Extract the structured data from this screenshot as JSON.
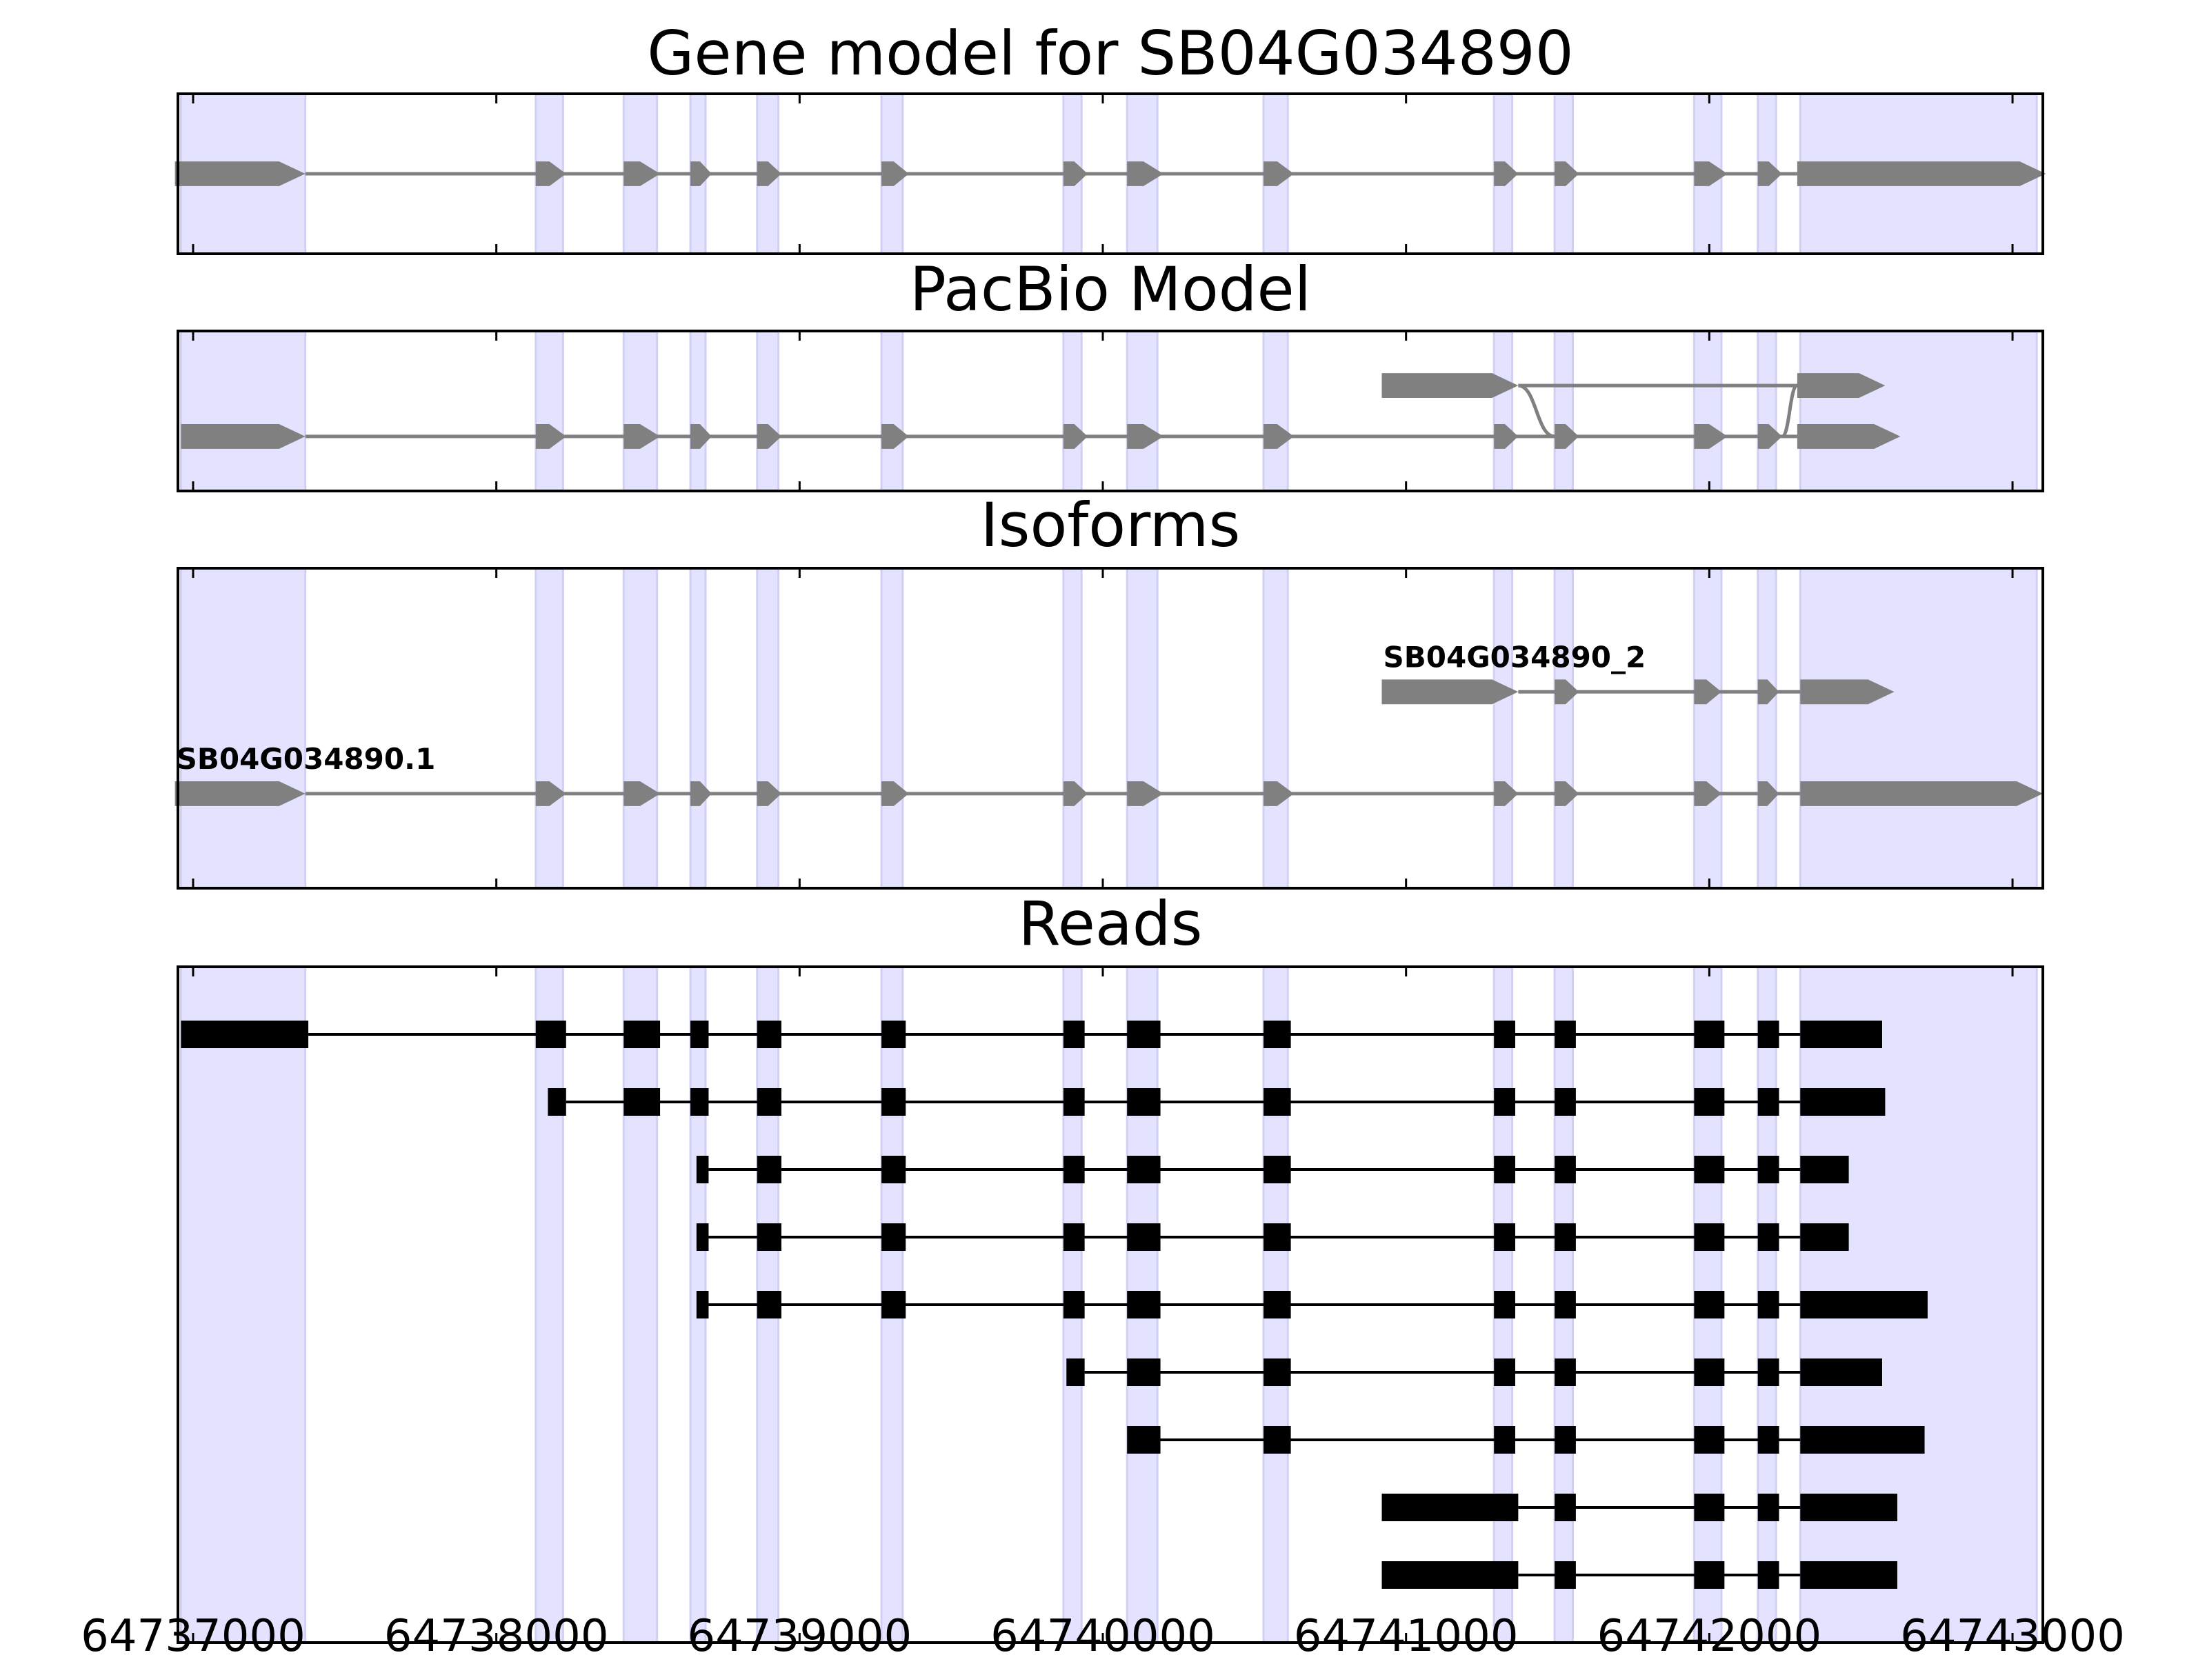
{
  "chart_data": {
    "type": "gene_model_tracks",
    "x_range": [
      64736950,
      64743100
    ],
    "colors": {
      "exon_band": "#E3E3FF",
      "exon_band_edge": "#D0D0F4",
      "model_fill": "#808080",
      "read_fill": "#000000",
      "axes": "#000000",
      "background": "#FFFFFF"
    },
    "xticks": [
      {
        "value": 64737000,
        "label": "64737000"
      },
      {
        "value": 64738000,
        "label": "64738000"
      },
      {
        "value": 64739000,
        "label": "64739000"
      },
      {
        "value": 64740000,
        "label": "64740000"
      },
      {
        "value": 64741000,
        "label": "64741000"
      },
      {
        "value": 64742000,
        "label": "64742000"
      },
      {
        "value": 64743000,
        "label": "64743000"
      }
    ],
    "exon_bands": [
      [
        64736960,
        64737370
      ],
      [
        64738130,
        64738220
      ],
      [
        64738420,
        64738530
      ],
      [
        64738640,
        64738690
      ],
      [
        64738860,
        64738930
      ],
      [
        64739270,
        64739340
      ],
      [
        64739870,
        64739930
      ],
      [
        64740080,
        64740180
      ],
      [
        64740530,
        64740610
      ],
      [
        64741290,
        64741350
      ],
      [
        64741490,
        64741550
      ],
      [
        64741950,
        64742040
      ],
      [
        64742160,
        64742220
      ],
      [
        64742300,
        64743080
      ]
    ],
    "panels": [
      {
        "title": "Gene model for SB04G034890",
        "style": "model",
        "height_units": 2.2,
        "rows": [
          {
            "y": 1.1,
            "exons": [
              [
                64736940,
                64737370
              ],
              [
                64738130,
                64738230
              ],
              [
                64738420,
                64738540
              ],
              [
                64738640,
                64738710
              ],
              [
                64738860,
                64738940
              ],
              [
                64739270,
                64739360
              ],
              [
                64739870,
                64739950
              ],
              [
                64740080,
                64740200
              ],
              [
                64740530,
                64740630
              ],
              [
                64741290,
                64741370
              ],
              [
                64741490,
                64741570
              ],
              [
                64741950,
                64742060
              ],
              [
                64742160,
                64742240
              ],
              [
                64742290,
                64743110
              ]
            ]
          }
        ]
      },
      {
        "title": "PacBio Model",
        "style": "model",
        "height_units": 2.2,
        "curves": [
          {
            "from": [
              64741370,
              0.75
            ],
            "to": [
              64741490,
              1.45
            ]
          },
          {
            "from": [
              64742240,
              1.45
            ],
            "to": [
              64742290,
              0.75
            ]
          }
        ],
        "rows": [
          {
            "y": 0.75,
            "exons": [
              [
                64740920,
                64741370
              ],
              [
                64742290,
                64742580
              ]
            ]
          },
          {
            "y": 1.45,
            "exons": [
              [
                64736960,
                64737370
              ],
              [
                64738130,
                64738230
              ],
              [
                64738420,
                64738540
              ],
              [
                64738640,
                64738710
              ],
              [
                64738860,
                64738940
              ],
              [
                64739270,
                64739360
              ],
              [
                64739870,
                64739950
              ],
              [
                64740080,
                64740200
              ],
              [
                64740530,
                64740630
              ],
              [
                64741290,
                64741370
              ],
              [
                64741490,
                64741570
              ],
              [
                64741950,
                64742060
              ],
              [
                64742160,
                64742240
              ],
              [
                64742290,
                64742630
              ]
            ]
          }
        ]
      },
      {
        "title": "Isoforms",
        "style": "model",
        "height_units": 4.4,
        "rows": [
          {
            "y": 1.7,
            "label": "SB04G034890_2",
            "exons": [
              [
                64740920,
                64741370
              ],
              [
                64741490,
                64741570
              ],
              [
                64741950,
                64742040
              ],
              [
                64742160,
                64742230
              ],
              [
                64742300,
                64742610
              ]
            ]
          },
          {
            "y": 3.1,
            "label": "SB04G034890.1",
            "exons": [
              [
                64736940,
                64737370
              ],
              [
                64738130,
                64738230
              ],
              [
                64738420,
                64738540
              ],
              [
                64738640,
                64738710
              ],
              [
                64738860,
                64738940
              ],
              [
                64739270,
                64739360
              ],
              [
                64739870,
                64739950
              ],
              [
                64740080,
                64740200
              ],
              [
                64740530,
                64740630
              ],
              [
                64741290,
                64741370
              ],
              [
                64741490,
                64741570
              ],
              [
                64741950,
                64742040
              ],
              [
                64742160,
                64742230
              ],
              [
                64742300,
                64743100
              ]
            ]
          }
        ]
      },
      {
        "title": "Reads",
        "style": "reads",
        "height_units": 10,
        "rows": [
          {
            "y": 1.0,
            "exons": [
              [
                64736960,
                64737380
              ],
              [
                64738130,
                64738230
              ],
              [
                64738420,
                64738540
              ],
              [
                64738640,
                64738700
              ],
              [
                64738860,
                64738940
              ],
              [
                64739270,
                64739350
              ],
              [
                64739870,
                64739940
              ],
              [
                64740080,
                64740190
              ],
              [
                64740530,
                64740620
              ],
              [
                64741290,
                64741360
              ],
              [
                64741490,
                64741560
              ],
              [
                64741950,
                64742050
              ],
              [
                64742160,
                64742230
              ],
              [
                64742300,
                64742570
              ]
            ]
          },
          {
            "y": 2.0,
            "exons": [
              [
                64738170,
                64738230
              ],
              [
                64738420,
                64738540
              ],
              [
                64738640,
                64738700
              ],
              [
                64738860,
                64738940
              ],
              [
                64739270,
                64739350
              ],
              [
                64739870,
                64739940
              ],
              [
                64740080,
                64740190
              ],
              [
                64740530,
                64740620
              ],
              [
                64741290,
                64741360
              ],
              [
                64741490,
                64741560
              ],
              [
                64741950,
                64742050
              ],
              [
                64742160,
                64742230
              ],
              [
                64742300,
                64742580
              ]
            ]
          },
          {
            "y": 3.0,
            "exons": [
              [
                64738660,
                64738700
              ],
              [
                64738860,
                64738940
              ],
              [
                64739270,
                64739350
              ],
              [
                64739870,
                64739940
              ],
              [
                64740080,
                64740190
              ],
              [
                64740530,
                64740620
              ],
              [
                64741290,
                64741360
              ],
              [
                64741490,
                64741560
              ],
              [
                64741950,
                64742050
              ],
              [
                64742160,
                64742230
              ],
              [
                64742300,
                64742460
              ]
            ]
          },
          {
            "y": 4.0,
            "exons": [
              [
                64738660,
                64738700
              ],
              [
                64738860,
                64738940
              ],
              [
                64739270,
                64739350
              ],
              [
                64739870,
                64739940
              ],
              [
                64740080,
                64740190
              ],
              [
                64740530,
                64740620
              ],
              [
                64741290,
                64741360
              ],
              [
                64741490,
                64741560
              ],
              [
                64741950,
                64742050
              ],
              [
                64742160,
                64742230
              ],
              [
                64742300,
                64742460
              ]
            ]
          },
          {
            "y": 5.0,
            "exons": [
              [
                64738660,
                64738700
              ],
              [
                64738860,
                64738940
              ],
              [
                64739270,
                64739350
              ],
              [
                64739870,
                64739940
              ],
              [
                64740080,
                64740190
              ],
              [
                64740530,
                64740620
              ],
              [
                64741290,
                64741360
              ],
              [
                64741490,
                64741560
              ],
              [
                64741950,
                64742050
              ],
              [
                64742160,
                64742230
              ],
              [
                64742300,
                64742720
              ]
            ]
          },
          {
            "y": 6.0,
            "exons": [
              [
                64739880,
                64739940
              ],
              [
                64740080,
                64740190
              ],
              [
                64740530,
                64740620
              ],
              [
                64741290,
                64741360
              ],
              [
                64741490,
                64741560
              ],
              [
                64741950,
                64742050
              ],
              [
                64742160,
                64742230
              ],
              [
                64742300,
                64742570
              ]
            ]
          },
          {
            "y": 7.0,
            "exons": [
              [
                64740080,
                64740190
              ],
              [
                64740530,
                64740620
              ],
              [
                64741290,
                64741360
              ],
              [
                64741490,
                64741560
              ],
              [
                64741950,
                64742050
              ],
              [
                64742160,
                64742230
              ],
              [
                64742300,
                64742710
              ]
            ]
          },
          {
            "y": 8.0,
            "exons": [
              [
                64740920,
                64741370
              ],
              [
                64741490,
                64741560
              ],
              [
                64741950,
                64742050
              ],
              [
                64742160,
                64742230
              ],
              [
                64742300,
                64742620
              ]
            ]
          },
          {
            "y": 9.0,
            "exons": [
              [
                64740920,
                64741370
              ],
              [
                64741490,
                64741560
              ],
              [
                64741950,
                64742050
              ],
              [
                64742160,
                64742230
              ],
              [
                64742300,
                64742620
              ]
            ]
          }
        ]
      }
    ]
  }
}
